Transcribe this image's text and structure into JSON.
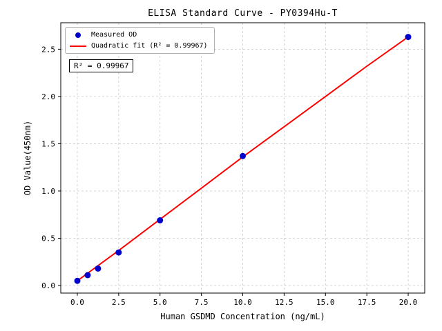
{
  "chart_data": {
    "type": "scatter",
    "title": "ELISA Standard Curve - PY0394Hu-T",
    "xlabel": "Human GSDMD Concentration (ng/mL)",
    "ylabel": "OD Value(450nm)",
    "xlim": [
      -1,
      21
    ],
    "ylim": [
      -0.08,
      2.78
    ],
    "x_ticks": [
      0.0,
      2.5,
      5.0,
      7.5,
      10.0,
      12.5,
      15.0,
      17.5,
      20.0
    ],
    "x_tick_labels": [
      "0.0",
      "2.5",
      "5.0",
      "7.5",
      "10.0",
      "12.5",
      "15.0",
      "17.5",
      "20.0"
    ],
    "y_ticks": [
      0.0,
      0.5,
      1.0,
      1.5,
      2.0,
      2.5
    ],
    "y_tick_labels": [
      "0.0",
      "0.5",
      "1.0",
      "1.5",
      "2.0",
      "2.5"
    ],
    "grid": true,
    "annotation": "R² = 0.99967",
    "legend": {
      "position": "upper-left",
      "entries": [
        {
          "label": "Measured OD",
          "marker": "circle",
          "color": "#0000cd"
        },
        {
          "label": "Quadratic fit (R² = 0.99967)",
          "marker": "line",
          "color": "#ff0000"
        }
      ]
    },
    "series": [
      {
        "name": "Measured OD",
        "type": "scatter",
        "color": "#0000cd",
        "points": [
          [
            0,
            0.05
          ],
          [
            0.625,
            0.11
          ],
          [
            1.25,
            0.18
          ],
          [
            2.5,
            0.35
          ],
          [
            5,
            0.69
          ],
          [
            10,
            1.37
          ],
          [
            20,
            2.63
          ]
        ]
      },
      {
        "name": "Quadratic fit",
        "type": "line",
        "color": "#ff0000",
        "points": [
          [
            0,
            0.05
          ],
          [
            2.5,
            0.37
          ],
          [
            5,
            0.7
          ],
          [
            7.5,
            1.03
          ],
          [
            10,
            1.36
          ],
          [
            12.5,
            1.68
          ],
          [
            15,
            2.0
          ],
          [
            17.5,
            2.32
          ],
          [
            20,
            2.63
          ]
        ]
      }
    ],
    "colors": {
      "axis": "#000000",
      "grid": "#c9c9c9",
      "background": "#ffffff",
      "point": "#0000cd",
      "fit_line": "#ff0000"
    }
  }
}
